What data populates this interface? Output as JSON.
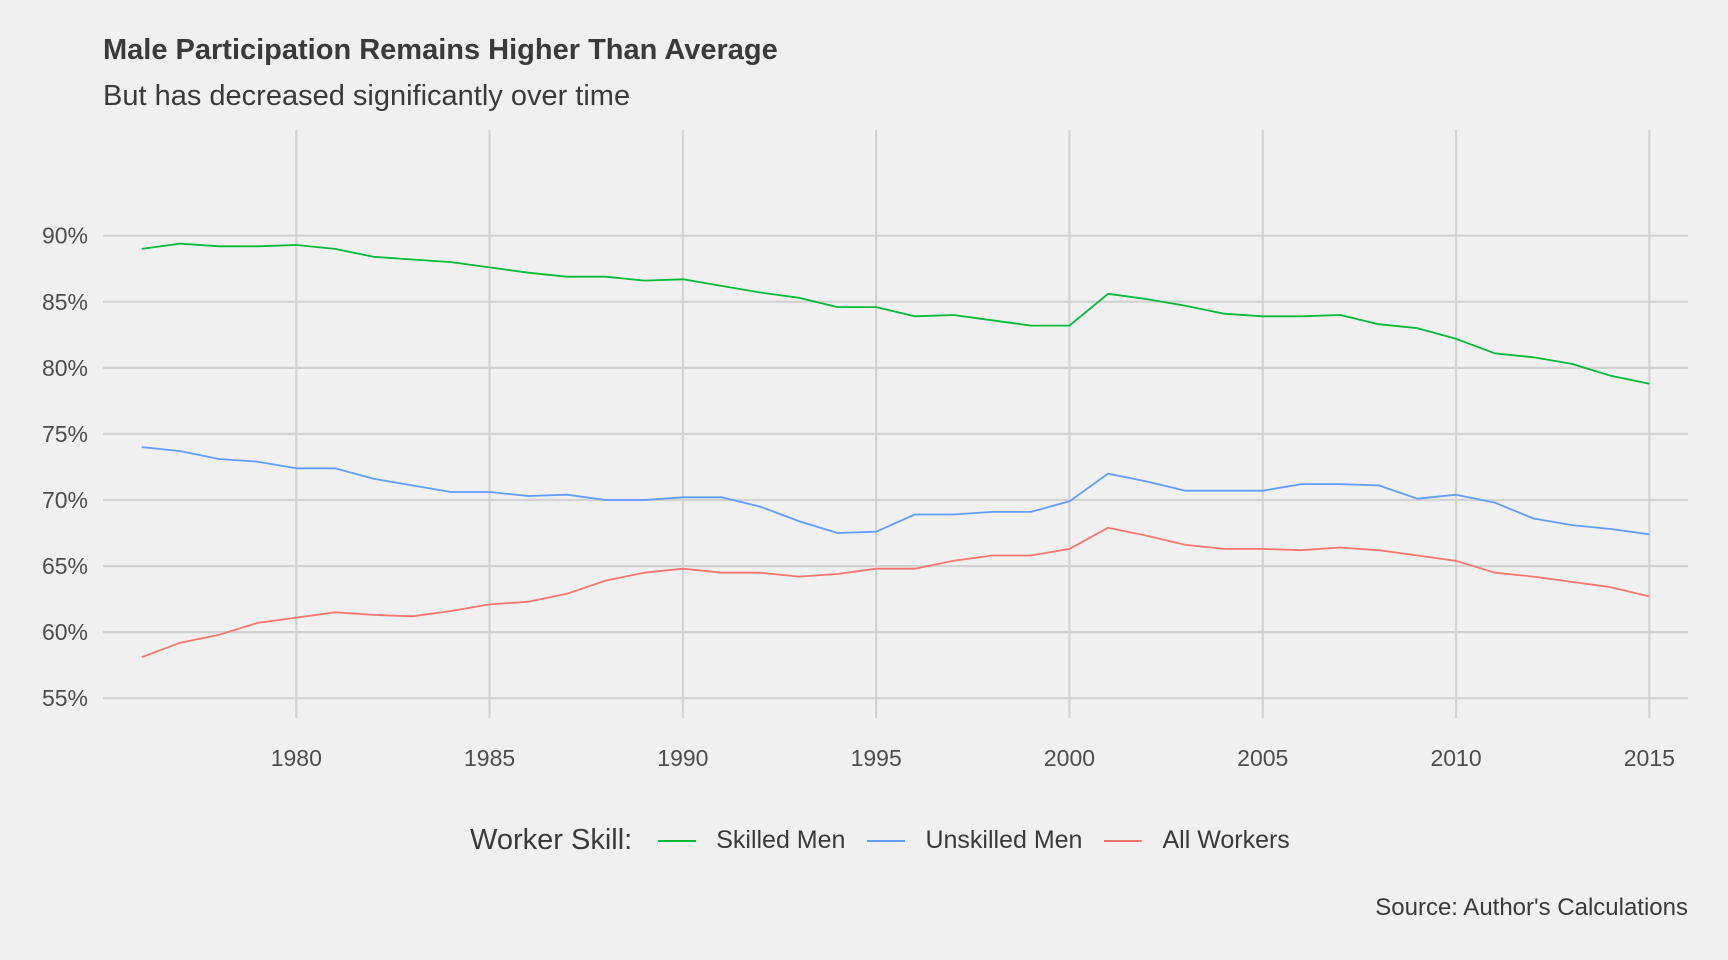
{
  "title": "Male Participation Remains Higher Than Average",
  "subtitle": "But has decreased significantly over time",
  "caption": "Source: Author's Calculations",
  "legend": {
    "title": "Worker Skill:",
    "position": "bottom"
  },
  "chart_data": {
    "type": "line",
    "title": "Male Participation Remains Higher Than Average",
    "subtitle": "But has decreased significantly over time",
    "xlabel": "",
    "ylabel": "",
    "xlim": [
      1975,
      2016
    ],
    "ylim": [
      0.535,
      0.98
    ],
    "x_ticks": [
      1980,
      1985,
      1990,
      1995,
      2000,
      2005,
      2010,
      2015
    ],
    "x_tick_labels": [
      "1980",
      "1985",
      "1990",
      "1995",
      "2000",
      "2005",
      "2010",
      "2015"
    ],
    "y_ticks": [
      0.55,
      0.6,
      0.65,
      0.7,
      0.75,
      0.8,
      0.85,
      0.9
    ],
    "y_tick_labels": [
      "55%",
      "60%",
      "65%",
      "70%",
      "75%",
      "80%",
      "85%",
      "90%"
    ],
    "grid": true,
    "legend_placement": "bottom",
    "x": [
      1976,
      1977,
      1978,
      1979,
      1980,
      1981,
      1982,
      1983,
      1984,
      1985,
      1986,
      1987,
      1988,
      1989,
      1990,
      1991,
      1992,
      1993,
      1994,
      1995,
      1996,
      1997,
      1998,
      1999,
      2000,
      2001,
      2002,
      2003,
      2004,
      2005,
      2006,
      2007,
      2008,
      2009,
      2010,
      2011,
      2012,
      2013,
      2014,
      2015
    ],
    "series": [
      {
        "name": "Skilled Men",
        "color": "#00ba38",
        "values": [
          0.89,
          0.894,
          0.892,
          0.892,
          0.893,
          0.89,
          0.884,
          0.882,
          0.88,
          0.876,
          0.872,
          0.869,
          0.869,
          0.866,
          0.867,
          0.862,
          0.857,
          0.853,
          0.846,
          0.846,
          0.839,
          0.84,
          0.836,
          0.832,
          0.832,
          0.856,
          0.852,
          0.847,
          0.841,
          0.839,
          0.839,
          0.84,
          0.833,
          0.83,
          0.822,
          0.811,
          0.808,
          0.803,
          0.794,
          0.788
        ]
      },
      {
        "name": "Unskilled Men",
        "color": "#619cff",
        "values": [
          0.74,
          0.737,
          0.731,
          0.729,
          0.724,
          0.724,
          0.716,
          0.711,
          0.706,
          0.706,
          0.703,
          0.704,
          0.7,
          0.7,
          0.702,
          0.702,
          0.695,
          0.684,
          0.675,
          0.676,
          0.689,
          0.689,
          0.691,
          0.691,
          0.699,
          0.72,
          0.714,
          0.707,
          0.707,
          0.707,
          0.712,
          0.712,
          0.711,
          0.701,
          0.704,
          0.698,
          0.686,
          0.681,
          0.678,
          0.674
        ]
      },
      {
        "name": "All Workers",
        "color": "#f8766d",
        "values": [
          0.581,
          0.592,
          0.598,
          0.607,
          0.611,
          0.615,
          0.613,
          0.612,
          0.616,
          0.621,
          0.623,
          0.629,
          0.639,
          0.645,
          0.648,
          0.645,
          0.645,
          0.642,
          0.644,
          0.648,
          0.648,
          0.654,
          0.658,
          0.658,
          0.663,
          0.679,
          0.673,
          0.666,
          0.663,
          0.663,
          0.662,
          0.664,
          0.662,
          0.658,
          0.654,
          0.645,
          0.642,
          0.638,
          0.634,
          0.627
        ]
      }
    ]
  }
}
